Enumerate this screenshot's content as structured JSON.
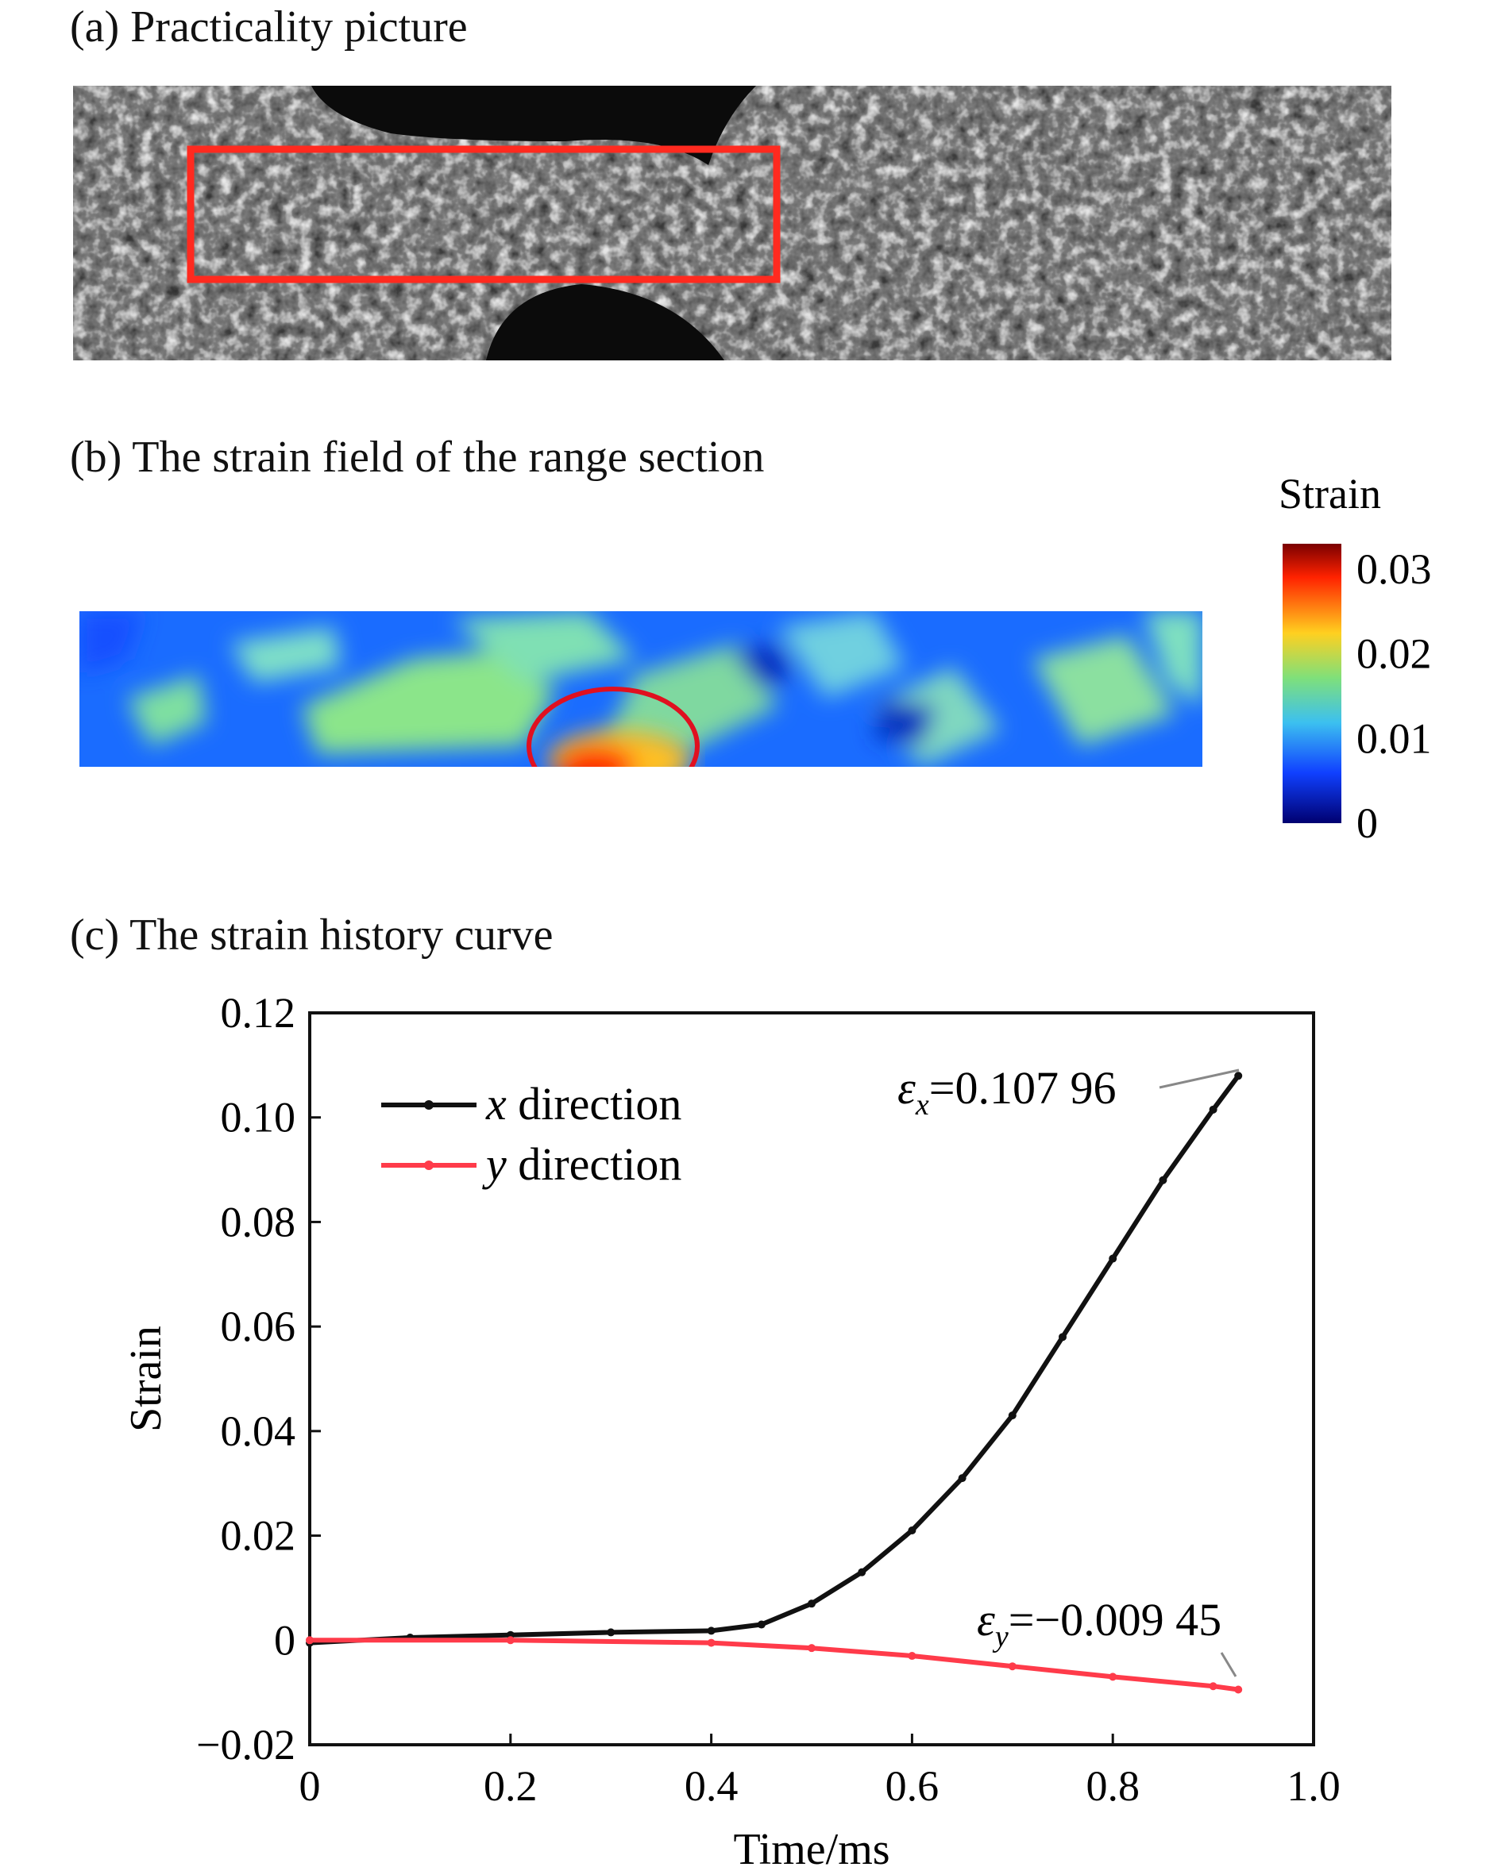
{
  "panels": {
    "a_title": "(a) Practicality picture",
    "b_title": "(b) The strain field of the range section",
    "c_title": "(c) The strain history curve"
  },
  "colorbar": {
    "title": "Strain",
    "ticks": [
      "0.03",
      "0.02",
      "0.01",
      "0"
    ],
    "values": [
      0.03,
      0.02,
      0.01,
      0
    ],
    "colors": [
      "#7a0000",
      "#ff2200",
      "#ffd020",
      "#7fe07a",
      "#3cc0f0",
      "#1040ff",
      "#000070"
    ]
  },
  "chart_data": {
    "type": "line",
    "xlabel": "Time/ms",
    "ylabel": "Strain",
    "xlim": [
      0,
      1.0
    ],
    "ylim": [
      -0.02,
      0.12
    ],
    "xticks": [
      0,
      0.2,
      0.4,
      0.6,
      0.8,
      1.0
    ],
    "xtick_labels": [
      "0",
      "0.2",
      "0.4",
      "0.6",
      "0.8",
      "1.0"
    ],
    "yticks": [
      -0.02,
      0,
      0.02,
      0.04,
      0.06,
      0.08,
      0.1,
      0.12
    ],
    "ytick_labels": [
      "−0.02",
      "0",
      "0.02",
      "0.04",
      "0.06",
      "0.08",
      "0.10",
      "0.12"
    ],
    "legend_position": "top-left",
    "series": [
      {
        "name": "x direction",
        "var": "x",
        "rest": " direction",
        "color": "#111111",
        "points": [
          [
            0,
            -0.0005
          ],
          [
            0.1,
            0.0005
          ],
          [
            0.2,
            0.001
          ],
          [
            0.3,
            0.0015
          ],
          [
            0.4,
            0.0018
          ],
          [
            0.45,
            0.003
          ],
          [
            0.5,
            0.007
          ],
          [
            0.55,
            0.013
          ],
          [
            0.6,
            0.021
          ],
          [
            0.65,
            0.031
          ],
          [
            0.7,
            0.043
          ],
          [
            0.75,
            0.058
          ],
          [
            0.8,
            0.073
          ],
          [
            0.85,
            0.088
          ],
          [
            0.9,
            0.1015
          ],
          [
            0.925,
            0.10796
          ]
        ]
      },
      {
        "name": "y direction",
        "var": "y",
        "rest": " direction",
        "color": "#ff3b4a",
        "points": [
          [
            0,
            0.0
          ],
          [
            0.2,
            0.0
          ],
          [
            0.4,
            -0.0005
          ],
          [
            0.5,
            -0.0015
          ],
          [
            0.6,
            -0.003
          ],
          [
            0.7,
            -0.005
          ],
          [
            0.8,
            -0.007
          ],
          [
            0.9,
            -0.0088
          ],
          [
            0.925,
            -0.00945
          ]
        ]
      }
    ],
    "annotations": [
      {
        "symbol": "ε",
        "sub": "x",
        "rest": "=0.107 96",
        "x": 0.925,
        "y": 0.10796
      },
      {
        "symbol": "ε",
        "sub": "y",
        "rest": "=−0.009 45",
        "x": 0.925,
        "y": -0.00945
      }
    ]
  }
}
